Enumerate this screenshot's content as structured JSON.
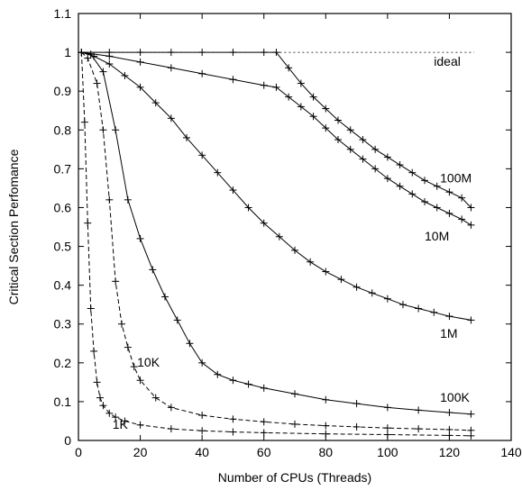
{
  "chart_data": {
    "type": "line",
    "title": "",
    "xlabel": "Number of CPUs (Threads)",
    "ylabel": "Critical Section Perfomance",
    "xlim": [
      0,
      140
    ],
    "ylim": [
      0,
      1.1
    ],
    "xticks": [
      "0",
      "20",
      "40",
      "60",
      "80",
      "100",
      "120",
      "140"
    ],
    "yticks": [
      "0",
      "0.1",
      "0.2",
      "0.3",
      "0.4",
      "0.5",
      "0.6",
      "0.7",
      "0.8",
      "0.9",
      "1",
      "1.1"
    ],
    "grid": false,
    "legend": "none",
    "series": [
      {
        "name": "ideal",
        "style": "dotted",
        "x": [
          1,
          128
        ],
        "y": [
          1.0,
          1.0
        ]
      },
      {
        "name": "100M",
        "style": "solid",
        "x": [
          1,
          10,
          20,
          30,
          40,
          50,
          60,
          64,
          68,
          72,
          76,
          80,
          84,
          88,
          92,
          96,
          100,
          104,
          108,
          112,
          116,
          120,
          124,
          127
        ],
        "y": [
          1.0,
          1.0,
          1.0,
          1.0,
          1.0,
          1.0,
          1.0,
          1.0,
          0.96,
          0.92,
          0.885,
          0.855,
          0.825,
          0.8,
          0.775,
          0.75,
          0.73,
          0.71,
          0.69,
          0.67,
          0.655,
          0.64,
          0.625,
          0.6
        ]
      },
      {
        "name": "10M",
        "style": "solid",
        "x": [
          1,
          10,
          20,
          30,
          40,
          50,
          60,
          64,
          68,
          72,
          76,
          80,
          84,
          88,
          92,
          96,
          100,
          104,
          108,
          112,
          116,
          120,
          124,
          127
        ],
        "y": [
          1.0,
          0.99,
          0.975,
          0.96,
          0.945,
          0.93,
          0.915,
          0.91,
          0.885,
          0.86,
          0.835,
          0.805,
          0.775,
          0.75,
          0.725,
          0.7,
          0.675,
          0.655,
          0.635,
          0.615,
          0.6,
          0.585,
          0.57,
          0.555
        ]
      },
      {
        "name": "1M",
        "style": "solid",
        "x": [
          1,
          5,
          10,
          15,
          20,
          25,
          30,
          35,
          40,
          45,
          50,
          55,
          60,
          65,
          70,
          75,
          80,
          85,
          90,
          95,
          100,
          105,
          110,
          115,
          120,
          127
        ],
        "y": [
          1.0,
          0.99,
          0.97,
          0.94,
          0.91,
          0.87,
          0.83,
          0.78,
          0.735,
          0.69,
          0.645,
          0.6,
          0.56,
          0.525,
          0.49,
          0.46,
          0.435,
          0.415,
          0.395,
          0.38,
          0.365,
          0.35,
          0.34,
          0.33,
          0.32,
          0.31
        ]
      },
      {
        "name": "100K",
        "style": "solid",
        "x": [
          1,
          4,
          8,
          12,
          16,
          20,
          24,
          28,
          32,
          36,
          40,
          45,
          50,
          55,
          60,
          70,
          80,
          90,
          100,
          110,
          120,
          127
        ],
        "y": [
          1.0,
          0.995,
          0.95,
          0.8,
          0.62,
          0.52,
          0.44,
          0.37,
          0.31,
          0.25,
          0.2,
          0.17,
          0.155,
          0.145,
          0.135,
          0.12,
          0.105,
          0.095,
          0.085,
          0.078,
          0.072,
          0.068
        ]
      },
      {
        "name": "10K",
        "style": "dashed",
        "x": [
          1,
          3,
          6,
          8,
          10,
          12,
          14,
          16,
          18,
          20,
          25,
          30,
          40,
          50,
          60,
          70,
          80,
          90,
          100,
          110,
          120,
          127
        ],
        "y": [
          1.0,
          0.985,
          0.92,
          0.8,
          0.62,
          0.41,
          0.3,
          0.24,
          0.19,
          0.155,
          0.11,
          0.085,
          0.065,
          0.055,
          0.048,
          0.042,
          0.038,
          0.035,
          0.032,
          0.03,
          0.028,
          0.026
        ]
      },
      {
        "name": "1K",
        "style": "dashed",
        "x": [
          1,
          2,
          3,
          4,
          5,
          6,
          7,
          8,
          10,
          12,
          15,
          20,
          30,
          40,
          50,
          60,
          80,
          100,
          120,
          127
        ],
        "y": [
          1.0,
          0.82,
          0.56,
          0.34,
          0.23,
          0.15,
          0.11,
          0.09,
          0.07,
          0.06,
          0.05,
          0.04,
          0.03,
          0.025,
          0.022,
          0.02,
          0.017,
          0.015,
          0.013,
          0.012
        ]
      }
    ],
    "series_labels": [
      {
        "text": "ideal",
        "x": 115,
        "y": 0.965
      },
      {
        "text": "100M",
        "x": 117,
        "y": 0.665
      },
      {
        "text": "10M",
        "x": 112,
        "y": 0.515
      },
      {
        "text": "1M",
        "x": 117,
        "y": 0.265
      },
      {
        "text": "100K",
        "x": 117,
        "y": 0.1
      },
      {
        "text": "10K",
        "x": 19,
        "y": 0.19
      },
      {
        "text": "1K",
        "x": 11,
        "y": 0.03
      }
    ]
  }
}
